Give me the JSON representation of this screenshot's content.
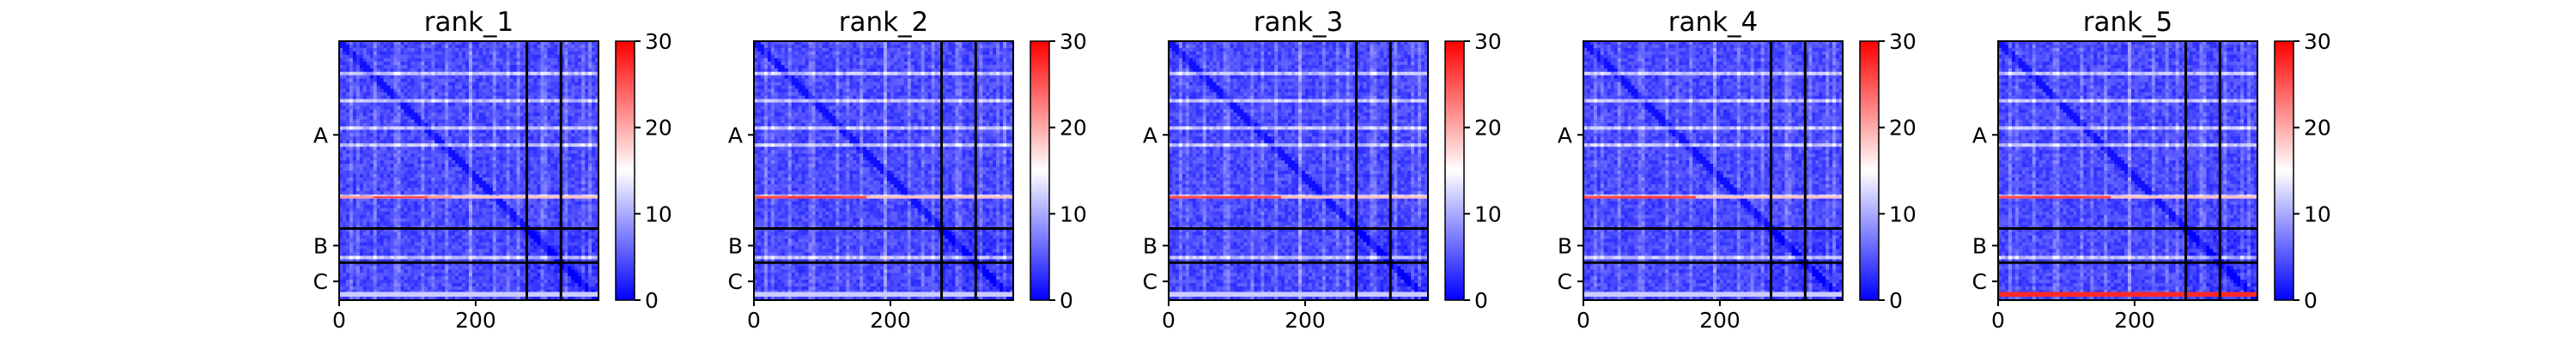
{
  "chart_data": [
    {
      "type": "heatmap",
      "title": "rank_1",
      "x_ticks": [
        "0",
        "200"
      ],
      "y_ticks": [
        "A",
        "B",
        "C"
      ],
      "n": 380,
      "segment_bounds": [
        0,
        275,
        325,
        380
      ],
      "colorbar": {
        "ticks": [
          "0",
          "10",
          "20",
          "30"
        ],
        "range": [
          0,
          30
        ],
        "cmap": "bwr"
      },
      "xlim": [
        0,
        380
      ],
      "ylim": [
        380,
        0
      ],
      "notes": "Mostly low (blue) error values with a high (light red) band near row 230 in A; black segment boundary lines at 275 and 325."
    },
    {
      "type": "heatmap",
      "title": "rank_2",
      "x_ticks": [
        "0",
        "200"
      ],
      "y_ticks": [
        "A",
        "B",
        "C"
      ],
      "n": 380,
      "segment_bounds": [
        0,
        275,
        325,
        380
      ],
      "colorbar": {
        "ticks": [
          "0",
          "10",
          "20",
          "30"
        ],
        "range": [
          0,
          30
        ],
        "cmap": "bwr"
      },
      "xlim": [
        0,
        380
      ],
      "ylim": [
        380,
        0
      ],
      "notes": "Similar pattern; red band near row 230 is slightly stronger."
    },
    {
      "type": "heatmap",
      "title": "rank_3",
      "x_ticks": [
        "0",
        "200"
      ],
      "y_ticks": [
        "A",
        "B",
        "C"
      ],
      "n": 380,
      "segment_bounds": [
        0,
        275,
        325,
        380
      ],
      "colorbar": {
        "ticks": [
          "0",
          "10",
          "20",
          "30"
        ],
        "range": [
          0,
          30
        ],
        "cmap": "bwr"
      },
      "xlim": [
        0,
        380
      ],
      "ylim": [
        380,
        0
      ],
      "notes": "Similar pattern to rank_2."
    },
    {
      "type": "heatmap",
      "title": "rank_4",
      "x_ticks": [
        "0",
        "200"
      ],
      "y_ticks": [
        "A",
        "B",
        "C"
      ],
      "n": 380,
      "segment_bounds": [
        0,
        275,
        325,
        380
      ],
      "colorbar": {
        "ticks": [
          "0",
          "10",
          "20",
          "30"
        ],
        "range": [
          0,
          30
        ],
        "cmap": "bwr"
      },
      "xlim": [
        0,
        380
      ],
      "ylim": [
        380,
        0
      ],
      "notes": "Similar pattern to rank_3."
    },
    {
      "type": "heatmap",
      "title": "rank_5",
      "x_ticks": [
        "0",
        "200"
      ],
      "y_ticks": [
        "A",
        "B",
        "C"
      ],
      "n": 380,
      "segment_bounds": [
        0,
        275,
        325,
        380
      ],
      "colorbar": {
        "ticks": [
          "0",
          "10",
          "20",
          "30"
        ],
        "range": [
          0,
          30
        ],
        "cmap": "bwr"
      },
      "xlim": [
        0,
        380
      ],
      "ylim": [
        380,
        0
      ],
      "notes": "Same pattern plus a strong red band in chain C rows (about 370-380)."
    }
  ],
  "colors": {
    "low": "#0000ff",
    "mid": "#ffffff",
    "high": "#ff0000",
    "boundary": "#000000"
  }
}
